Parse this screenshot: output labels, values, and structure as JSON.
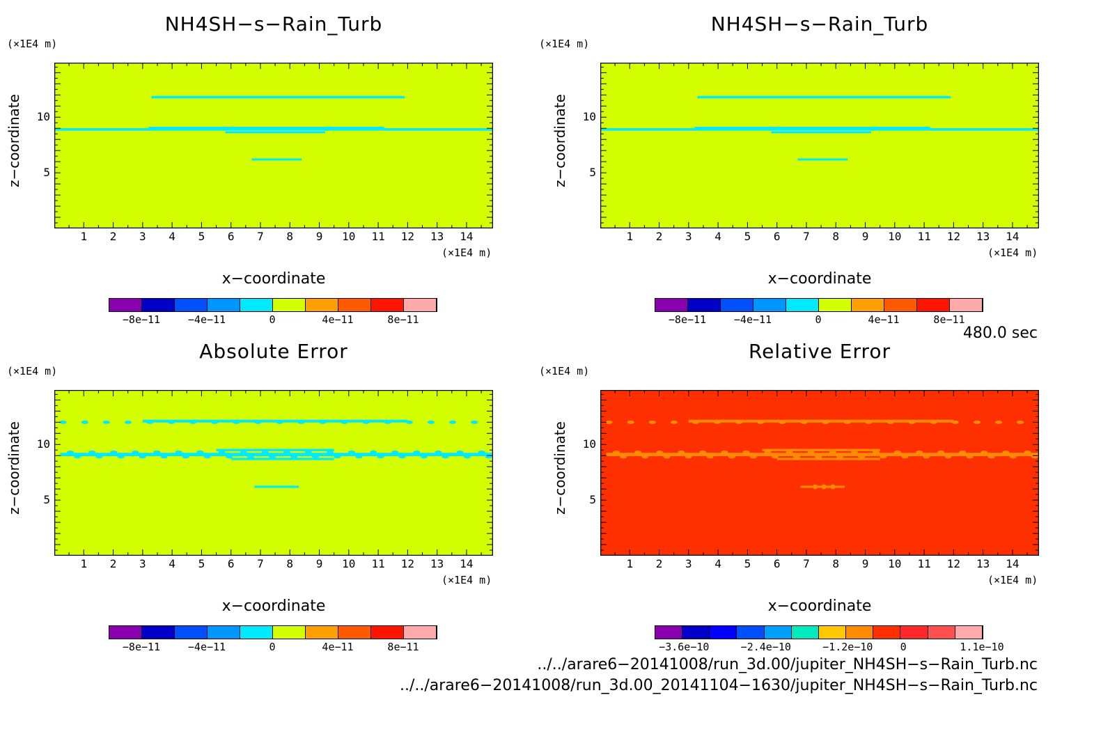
{
  "colors": {
    "abs_background": "#d4ff00",
    "abs_feature": "#00eaff",
    "rel_background": "#ff3000",
    "rel_feature": "#ff8c00"
  },
  "common": {
    "xlabel": "x−coordinate",
    "ylabel": "z−coordinate",
    "xunit": "(×1E4 m)",
    "yunit": "(×1E4 m)",
    "xticks": [
      "1",
      "2",
      "3",
      "4",
      "5",
      "6",
      "7",
      "8",
      "9",
      "10",
      "11",
      "12",
      "13",
      "14"
    ],
    "yticks": [
      "5",
      "10"
    ]
  },
  "chart_data": [
    {
      "type": "heatmap",
      "title": "NH4SH−s−Rain_Turb",
      "xlabel": "x−coordinate",
      "ylabel": "z−coordinate",
      "xlim": [
        0,
        14.9
      ],
      "ylim": [
        0,
        14.9
      ],
      "colorbar": {
        "colors": [
          "#8800b0",
          "#0000c8",
          "#0050ff",
          "#0096ff",
          "#00eaff",
          "#d4ff00",
          "#ffa000",
          "#ff5a00",
          "#ff1400",
          "#ffaaaa"
        ],
        "labels": [
          "−8e−11",
          "−4e−11",
          "0",
          "4e−11",
          "8e−11"
        ]
      }
    },
    {
      "type": "heatmap",
      "title": "NH4SH−s−Rain_Turb",
      "xlabel": "x−coordinate",
      "ylabel": "z−coordinate",
      "xlim": [
        0,
        14.9
      ],
      "ylim": [
        0,
        14.9
      ],
      "colorbar": {
        "colors": [
          "#8800b0",
          "#0000c8",
          "#0050ff",
          "#0096ff",
          "#00eaff",
          "#d4ff00",
          "#ffa000",
          "#ff5a00",
          "#ff1400",
          "#ffaaaa"
        ],
        "labels": [
          "−8e−11",
          "−4e−11",
          "0",
          "4e−11",
          "8e−11"
        ]
      }
    },
    {
      "type": "heatmap",
      "title": "Absolute Error",
      "xlabel": "x−coordinate",
      "ylabel": "z−coordinate",
      "xlim": [
        0,
        14.9
      ],
      "ylim": [
        0,
        14.9
      ],
      "colorbar": {
        "colors": [
          "#8800b0",
          "#0000c8",
          "#0050ff",
          "#0096ff",
          "#00eaff",
          "#d4ff00",
          "#ffa000",
          "#ff5a00",
          "#ff1400",
          "#ffaaaa"
        ],
        "labels": [
          "−8e−11",
          "−4e−11",
          "0",
          "4e−11",
          "8e−11"
        ]
      }
    },
    {
      "type": "heatmap",
      "title": "Relative Error",
      "xlabel": "x−coordinate",
      "ylabel": "z−coordinate",
      "xlim": [
        0,
        14.9
      ],
      "ylim": [
        0,
        14.9
      ],
      "colorbar": {
        "colors": [
          "#8800b0",
          "#0000c8",
          "#0000ff",
          "#0050ff",
          "#00a0ff",
          "#00eac0",
          "#ffc800",
          "#ff8c00",
          "#ff3000",
          "#ff2828",
          "#ff5050",
          "#ffaaaa"
        ],
        "labels": [
          "−3.6e−10",
          "−2.4e−10",
          "−1.2e−10",
          "0",
          "1.1e−10"
        ]
      }
    }
  ],
  "annotations": {
    "time": "480.0 sec",
    "file1": "../../arare6−20141008/run_3d.00/jupiter_NH4SH−s−Rain_Turb.nc",
    "file2": "../../arare6−20141008/run_3d.00_20141104−1630/jupiter_NH4SH−s−Rain_Turb.nc"
  }
}
